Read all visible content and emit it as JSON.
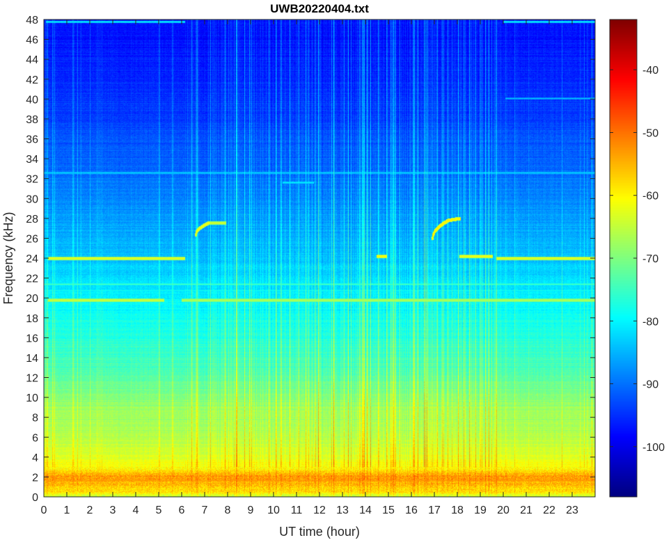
{
  "chart_data": {
    "type": "heatmap",
    "title": "UWB20220404.txt",
    "xlabel": "UT time (hour)",
    "ylabel": "Frequency (kHz)",
    "xlim": [
      0,
      24
    ],
    "ylim": [
      0,
      48
    ],
    "x_ticks": [
      "0",
      "1",
      "2",
      "3",
      "4",
      "5",
      "6",
      "7",
      "8",
      "9",
      "10",
      "11",
      "12",
      "13",
      "14",
      "15",
      "16",
      "17",
      "18",
      "19",
      "20",
      "21",
      "22",
      "23"
    ],
    "y_ticks": [
      "0",
      "2",
      "4",
      "6",
      "8",
      "10",
      "12",
      "14",
      "16",
      "18",
      "20",
      "22",
      "24",
      "26",
      "28",
      "30",
      "32",
      "34",
      "36",
      "38",
      "40",
      "42",
      "44",
      "46",
      "48"
    ],
    "colorbar": {
      "colormap": "jet",
      "range": [
        -108,
        -32
      ],
      "ticks": [
        "-100",
        "-90",
        "-80",
        "-70",
        "-60",
        "-50",
        "-40"
      ]
    },
    "background_profile_db": [
      {
        "f": 0,
        "db": -66
      },
      {
        "f": 0.4,
        "db": -59
      },
      {
        "f": 1.2,
        "db": -56
      },
      {
        "f": 2.0,
        "db": -53
      },
      {
        "f": 2.8,
        "db": -60
      },
      {
        "f": 4.0,
        "db": -63
      },
      {
        "f": 6.0,
        "db": -66
      },
      {
        "f": 9.0,
        "db": -68
      },
      {
        "f": 12.0,
        "db": -73
      },
      {
        "f": 16.0,
        "db": -77
      },
      {
        "f": 20.0,
        "db": -80
      },
      {
        "f": 24.0,
        "db": -84
      },
      {
        "f": 28.0,
        "db": -87
      },
      {
        "f": 32.0,
        "db": -90
      },
      {
        "f": 38.0,
        "db": -94
      },
      {
        "f": 46.0,
        "db": -97
      },
      {
        "f": 48.0,
        "db": -97
      }
    ],
    "transmitter_lines": [
      {
        "freq_khz": 24.0,
        "db": -62,
        "t_start": 0.2,
        "t_end": 6.1
      },
      {
        "freq_khz": 24.0,
        "db": -62,
        "t_start": 19.7,
        "t_end": 24.0
      },
      {
        "freq_khz": 24.2,
        "db": -60,
        "t_start": 14.5,
        "t_end": 14.9
      },
      {
        "freq_khz": 24.2,
        "db": -61,
        "t_start": 18.1,
        "t_end": 19.5
      },
      {
        "freq_khz": 19.8,
        "db": -64,
        "t_start": 0.2,
        "t_end": 5.2
      },
      {
        "freq_khz": 19.8,
        "db": -66,
        "t_start": 6.0,
        "t_end": 24.0
      },
      {
        "freq_khz": 21.4,
        "db": -74,
        "t_start": 0.0,
        "t_end": 24.0
      },
      {
        "freq_khz": 20.8,
        "db": -78,
        "t_start": 0.0,
        "t_end": 24.0
      },
      {
        "freq_khz": 18.2,
        "db": -79,
        "t_start": 0.0,
        "t_end": 24.0
      },
      {
        "freq_khz": 47.8,
        "db": -80,
        "t_start": 0.1,
        "t_end": 6.1
      },
      {
        "freq_khz": 47.8,
        "db": -80,
        "t_start": 20.0,
        "t_end": 24.0
      },
      {
        "freq_khz": 40.1,
        "db": -84,
        "t_start": 20.1,
        "t_end": 24.0
      },
      {
        "freq_khz": 31.6,
        "db": -80,
        "t_start": 10.4,
        "t_end": 11.7
      },
      {
        "freq_khz": 32.6,
        "db": -82,
        "t_start": 0.0,
        "t_end": 24.0
      }
    ],
    "rising_tones": [
      {
        "t_start": 6.6,
        "t_end": 7.2,
        "f_start": 26.4,
        "f_end": 27.6,
        "db": -62
      },
      {
        "t_start": 7.2,
        "t_end": 7.9,
        "f_start": 27.6,
        "f_end": 27.6,
        "db": -64
      },
      {
        "t_start": 16.9,
        "t_end": 17.5,
        "f_start": 26.0,
        "f_end": 27.7,
        "db": -60
      },
      {
        "t_start": 17.5,
        "t_end": 18.1,
        "f_start": 27.7,
        "f_end": 28.0,
        "db": -60
      }
    ],
    "low_freq_band": {
      "freq_khz": 1.7,
      "db": -53
    },
    "active_intervals_hour": [
      [
        6.1,
        19.8
      ]
    ]
  }
}
